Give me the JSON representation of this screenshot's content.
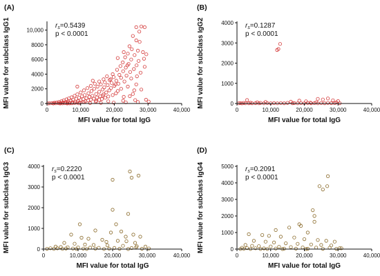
{
  "chart_data": [
    {
      "type": "scatter",
      "panel_label": "(A)",
      "xlabel": "MFI value for total IgG",
      "ylabel": "MFI value for subclass IgG1",
      "rs_symbol": "r",
      "rs_sub": "s",
      "rs_value": "=0.5439",
      "p_text": "p < 0.0001",
      "xlim": [
        0,
        40000
      ],
      "ylim": [
        0,
        11000
      ],
      "xticks": [
        0,
        10000,
        20000,
        30000,
        40000
      ],
      "xtick_labels": [
        "0",
        "10,000",
        "20,000",
        "30,000",
        "40,000"
      ],
      "yticks": [
        0,
        2000,
        4000,
        6000,
        8000,
        10000
      ],
      "ytick_labels": [
        "0",
        "2000",
        "4000",
        "6000",
        "8000",
        "10,000"
      ],
      "marker_color": "#d43a3a",
      "points": [
        [
          26500,
          10400
        ],
        [
          28000,
          10500
        ],
        [
          29000,
          10400
        ],
        [
          25500,
          9200
        ],
        [
          26500,
          8600
        ],
        [
          27500,
          8400
        ],
        [
          24500,
          7800
        ],
        [
          25200,
          7400
        ],
        [
          27000,
          7200
        ],
        [
          28500,
          7000
        ],
        [
          24000,
          6800
        ],
        [
          26000,
          6600
        ],
        [
          29500,
          6700
        ],
        [
          23200,
          6300
        ],
        [
          25000,
          6000
        ],
        [
          27200,
          5800
        ],
        [
          22500,
          5600
        ],
        [
          24200,
          5400
        ],
        [
          26600,
          5200
        ],
        [
          29000,
          5000
        ],
        [
          21800,
          5100
        ],
        [
          23400,
          4900
        ],
        [
          25800,
          4700
        ],
        [
          20800,
          4600
        ],
        [
          22600,
          4400
        ],
        [
          24700,
          4300
        ],
        [
          27800,
          4200
        ],
        [
          19500,
          4000
        ],
        [
          21500,
          3900
        ],
        [
          23600,
          3800
        ],
        [
          17800,
          3700
        ],
        [
          19800,
          3600
        ],
        [
          22000,
          3500
        ],
        [
          25000,
          3400
        ],
        [
          16800,
          3300
        ],
        [
          18600,
          3200
        ],
        [
          20600,
          3100
        ],
        [
          23000,
          3000
        ],
        [
          15500,
          3000
        ],
        [
          17200,
          2900
        ],
        [
          19200,
          2800
        ],
        [
          21200,
          2700
        ],
        [
          26500,
          2600
        ],
        [
          14200,
          2700
        ],
        [
          16000,
          2600
        ],
        [
          18000,
          2500
        ],
        [
          20000,
          2400
        ],
        [
          24000,
          2300
        ],
        [
          13000,
          2400
        ],
        [
          15000,
          2300
        ],
        [
          17000,
          2200
        ],
        [
          19000,
          2100
        ],
        [
          22000,
          2000
        ],
        [
          28000,
          1900
        ],
        [
          12000,
          2100
        ],
        [
          14000,
          2000
        ],
        [
          16500,
          1900
        ],
        [
          18500,
          1800
        ],
        [
          21000,
          1700
        ],
        [
          11000,
          1800
        ],
        [
          13200,
          1700
        ],
        [
          15500,
          1600
        ],
        [
          17600,
          1500
        ],
        [
          20500,
          1400
        ],
        [
          25500,
          1300
        ],
        [
          10000,
          1500
        ],
        [
          12300,
          1400
        ],
        [
          14600,
          1300
        ],
        [
          16800,
          1250
        ],
        [
          19500,
          1150
        ],
        [
          9000,
          1250
        ],
        [
          11200,
          1150
        ],
        [
          13500,
          1050
        ],
        [
          15800,
          1000
        ],
        [
          18200,
          950
        ],
        [
          22800,
          900
        ],
        [
          8200,
          1050
        ],
        [
          10400,
          980
        ],
        [
          12600,
          900
        ],
        [
          14800,
          830
        ],
        [
          17300,
          780
        ],
        [
          7300,
          850
        ],
        [
          9500,
          780
        ],
        [
          11700,
          720
        ],
        [
          13900,
          660
        ],
        [
          16300,
          620
        ],
        [
          6500,
          700
        ],
        [
          8700,
          640
        ],
        [
          10800,
          580
        ],
        [
          13000,
          530
        ],
        [
          15500,
          490
        ],
        [
          5800,
          560
        ],
        [
          7800,
          500
        ],
        [
          10000,
          450
        ],
        [
          12200,
          410
        ],
        [
          14600,
          370
        ],
        [
          5000,
          430
        ],
        [
          7000,
          380
        ],
        [
          9200,
          340
        ],
        [
          11400,
          300
        ],
        [
          4300,
          320
        ],
        [
          6200,
          280
        ],
        [
          8400,
          250
        ],
        [
          10600,
          220
        ],
        [
          3600,
          230
        ],
        [
          5500,
          200
        ],
        [
          7600,
          180
        ],
        [
          9800,
          160
        ],
        [
          2900,
          160
        ],
        [
          4800,
          140
        ],
        [
          6800,
          120
        ],
        [
          9000,
          110
        ],
        [
          2200,
          100
        ],
        [
          4100,
          90
        ],
        [
          6000,
          80
        ],
        [
          8200,
          70
        ],
        [
          1500,
          60
        ],
        [
          3400,
          50
        ],
        [
          5300,
          45
        ],
        [
          7400,
          40
        ],
        [
          800,
          30
        ],
        [
          2600,
          25
        ],
        [
          4600,
          20
        ],
        [
          6700,
          18
        ],
        [
          300,
          10
        ],
        [
          1900,
          8
        ],
        [
          3900,
          6
        ],
        [
          6000,
          5
        ],
        [
          9500,
          30
        ],
        [
          12800,
          60
        ],
        [
          16000,
          90
        ],
        [
          19800,
          120
        ],
        [
          23400,
          160
        ],
        [
          27000,
          200
        ],
        [
          30200,
          260
        ],
        [
          11000,
          180
        ],
        [
          14500,
          240
        ],
        [
          18200,
          300
        ],
        [
          22600,
          380
        ],
        [
          26200,
          460
        ],
        [
          29400,
          520
        ],
        [
          21000,
          6200
        ],
        [
          22800,
          7000
        ],
        [
          27400,
          9800
        ],
        [
          23900,
          5200
        ],
        [
          18900,
          3300
        ],
        [
          20300,
          2600
        ],
        [
          26700,
          3700
        ],
        [
          28800,
          6100
        ],
        [
          13600,
          3100
        ],
        [
          9000,
          2300
        ],
        [
          16600,
          1100
        ],
        [
          25900,
          1800
        ],
        [
          24600,
          1000
        ]
      ]
    },
    {
      "type": "scatter",
      "panel_label": "(B)",
      "xlabel": "MFI value for total IgG",
      "ylabel": "MFI value for subclass IgG2",
      "rs_symbol": "r",
      "rs_sub": "s",
      "rs_value": "=0.1287",
      "p_text": "p < 0.0001",
      "xlim": [
        0,
        40000
      ],
      "ylim": [
        0,
        4000
      ],
      "xticks": [
        0,
        10000,
        20000,
        30000,
        40000
      ],
      "xtick_labels": [
        "0",
        "10,000",
        "20,000",
        "30,000",
        "40,000"
      ],
      "yticks": [
        0,
        1000,
        2000,
        3000,
        4000
      ],
      "ytick_labels": [
        "0",
        "1000",
        "2000",
        "3000",
        "4000"
      ],
      "marker_color": "#d43a3a",
      "points": [
        [
          12800,
          2950
        ],
        [
          12300,
          2700
        ],
        [
          11900,
          2650
        ],
        [
          3000,
          170
        ],
        [
          18500,
          140
        ],
        [
          24000,
          230
        ],
        [
          25500,
          200
        ],
        [
          27000,
          250
        ],
        [
          28500,
          160
        ],
        [
          30000,
          120
        ],
        [
          20500,
          110
        ],
        [
          16000,
          90
        ],
        [
          8500,
          80
        ],
        [
          6000,
          60
        ],
        [
          4000,
          40
        ],
        [
          2000,
          30
        ],
        [
          1000,
          20
        ],
        [
          500,
          10
        ],
        [
          7000,
          30
        ],
        [
          9000,
          25
        ],
        [
          11000,
          20
        ],
        [
          13000,
          25
        ],
        [
          15000,
          30
        ],
        [
          17000,
          20
        ],
        [
          19000,
          25
        ],
        [
          21000,
          30
        ],
        [
          23000,
          20
        ],
        [
          25000,
          25
        ],
        [
          27000,
          30
        ],
        [
          29000,
          20
        ],
        [
          3500,
          15
        ],
        [
          5500,
          18
        ],
        [
          10000,
          12
        ],
        [
          14000,
          15
        ],
        [
          18000,
          10
        ],
        [
          22000,
          14
        ],
        [
          26000,
          12
        ],
        [
          28000,
          18
        ],
        [
          1500,
          8
        ],
        [
          2500,
          10
        ],
        [
          4500,
          12
        ],
        [
          6500,
          9
        ],
        [
          8000,
          11
        ],
        [
          12000,
          10
        ],
        [
          16500,
          12
        ],
        [
          20000,
          9
        ],
        [
          24000,
          11
        ],
        [
          30500,
          15
        ],
        [
          29500,
          50
        ],
        [
          23500,
          60
        ],
        [
          21800,
          45
        ]
      ]
    },
    {
      "type": "scatter",
      "panel_label": "(C)",
      "xlabel": "MFI value for total IgG",
      "ylabel": "MFI value for subclass IgG3",
      "rs_symbol": "r",
      "rs_sub": "s",
      "rs_value": "=0.2220",
      "p_text": "p < 0.0001",
      "xlim": [
        0,
        40000
      ],
      "ylim": [
        0,
        4000
      ],
      "xticks": [
        0,
        10000,
        20000,
        30000,
        40000
      ],
      "xtick_labels": [
        "0",
        "10,000",
        "20,000",
        "30,000",
        "40,000"
      ],
      "yticks": [
        0,
        1000,
        2000,
        3000,
        4000
      ],
      "ytick_labels": [
        "0",
        "1000",
        "2000",
        "3000",
        "4000"
      ],
      "marker_color": "#8a6a2a",
      "points": [
        [
          25000,
          3750
        ],
        [
          25500,
          3450
        ],
        [
          27500,
          3550
        ],
        [
          20000,
          3350
        ],
        [
          20000,
          1900
        ],
        [
          24500,
          1700
        ],
        [
          21000,
          1200
        ],
        [
          10500,
          1200
        ],
        [
          15000,
          900
        ],
        [
          19500,
          800
        ],
        [
          22500,
          850
        ],
        [
          26000,
          700
        ],
        [
          28000,
          600
        ],
        [
          8000,
          700
        ],
        [
          11000,
          550
        ],
        [
          13000,
          500
        ],
        [
          17000,
          450
        ],
        [
          21500,
          400
        ],
        [
          24000,
          380
        ],
        [
          26500,
          300
        ],
        [
          6000,
          300
        ],
        [
          9000,
          260
        ],
        [
          12000,
          220
        ],
        [
          14500,
          200
        ],
        [
          18500,
          180
        ],
        [
          23000,
          160
        ],
        [
          27000,
          140
        ],
        [
          29500,
          120
        ],
        [
          3500,
          120
        ],
        [
          5000,
          100
        ],
        [
          7000,
          90
        ],
        [
          10000,
          80
        ],
        [
          13500,
          70
        ],
        [
          16000,
          60
        ],
        [
          20500,
          55
        ],
        [
          25500,
          50
        ],
        [
          2000,
          40
        ],
        [
          4000,
          35
        ],
        [
          6500,
          30
        ],
        [
          8500,
          28
        ],
        [
          11500,
          25
        ],
        [
          15000,
          22
        ],
        [
          19000,
          20
        ],
        [
          22000,
          18
        ],
        [
          28500,
          16
        ],
        [
          1000,
          12
        ],
        [
          3000,
          10
        ],
        [
          5500,
          9
        ],
        [
          9500,
          8
        ],
        [
          12500,
          7
        ],
        [
          17500,
          6
        ],
        [
          24500,
          5
        ],
        [
          30500,
          30
        ],
        [
          26800,
          90
        ],
        [
          18200,
          350
        ],
        [
          23800,
          600
        ]
      ]
    },
    {
      "type": "scatter",
      "panel_label": "(D)",
      "xlabel": "MFI value for total IgG",
      "ylabel": "MFI value for subclass IgG4",
      "rs_symbol": "r",
      "rs_sub": "s",
      "rs_value": "=0.2091",
      "p_text": "p < 0.0001",
      "xlim": [
        0,
        40000
      ],
      "ylim": [
        0,
        5000
      ],
      "xticks": [
        0,
        10000,
        20000,
        30000,
        40000
      ],
      "xtick_labels": [
        "0",
        "10,000",
        "20,000",
        "30,000",
        "40,000"
      ],
      "yticks": [
        0,
        1000,
        2000,
        3000,
        4000,
        5000
      ],
      "ytick_labels": [
        "0",
        "1000",
        "2000",
        "3000",
        "4000",
        "5000"
      ],
      "marker_color": "#8a6a2a",
      "points": [
        [
          27000,
          4400
        ],
        [
          24500,
          3800
        ],
        [
          25500,
          3600
        ],
        [
          26800,
          3800
        ],
        [
          22500,
          2350
        ],
        [
          23000,
          2000
        ],
        [
          23000,
          1650
        ],
        [
          18500,
          1500
        ],
        [
          19000,
          1400
        ],
        [
          15500,
          1300
        ],
        [
          11500,
          1150
        ],
        [
          21000,
          1000
        ],
        [
          3500,
          900
        ],
        [
          7500,
          850
        ],
        [
          9500,
          800
        ],
        [
          13000,
          750
        ],
        [
          17000,
          700
        ],
        [
          20000,
          600
        ],
        [
          24000,
          550
        ],
        [
          26500,
          500
        ],
        [
          29000,
          450
        ],
        [
          5000,
          500
        ],
        [
          8500,
          450
        ],
        [
          11000,
          400
        ],
        [
          14500,
          350
        ],
        [
          18000,
          320
        ],
        [
          22000,
          280
        ],
        [
          25000,
          250
        ],
        [
          28000,
          220
        ],
        [
          2500,
          250
        ],
        [
          4500,
          200
        ],
        [
          6500,
          180
        ],
        [
          10000,
          160
        ],
        [
          12500,
          140
        ],
        [
          16000,
          120
        ],
        [
          19500,
          100
        ],
        [
          23500,
          90
        ],
        [
          27500,
          80
        ],
        [
          30500,
          60
        ],
        [
          1500,
          80
        ],
        [
          3000,
          60
        ],
        [
          5500,
          50
        ],
        [
          8000,
          40
        ],
        [
          11500,
          35
        ],
        [
          14000,
          30
        ],
        [
          17500,
          25
        ],
        [
          21000,
          20
        ],
        [
          25500,
          18
        ],
        [
          29500,
          15
        ],
        [
          1000,
          10
        ],
        [
          2000,
          12
        ],
        [
          4000,
          8
        ],
        [
          7000,
          9
        ],
        [
          9000,
          7
        ],
        [
          13500,
          6
        ],
        [
          20500,
          5
        ],
        [
          31000,
          50
        ]
      ]
    }
  ]
}
